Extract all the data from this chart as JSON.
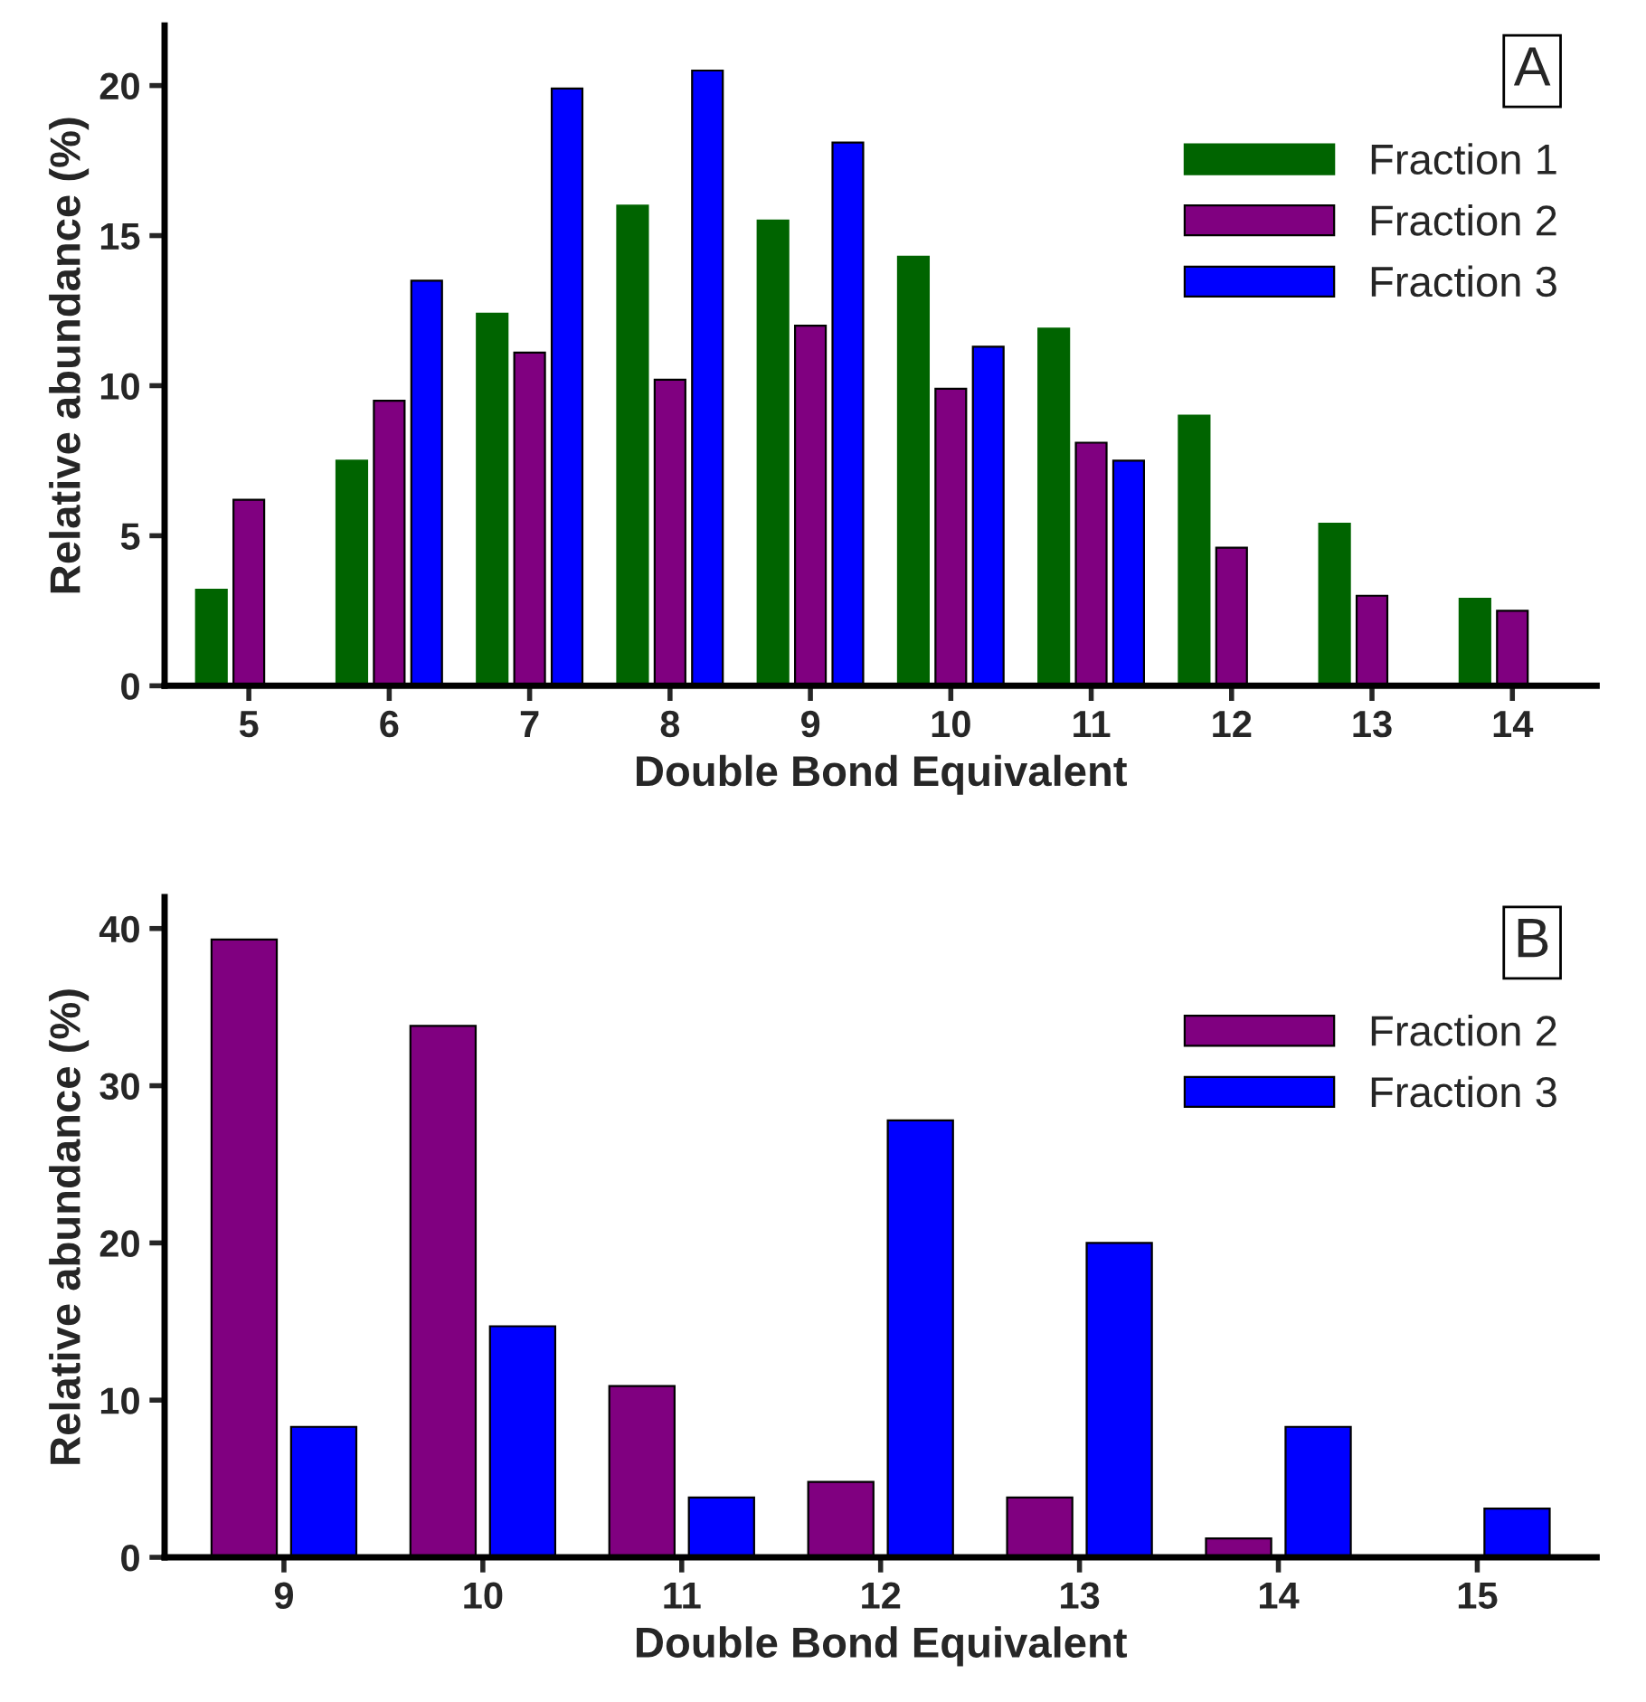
{
  "chart_data": [
    {
      "type": "bar",
      "categories": [
        "5",
        "6",
        "7",
        "8",
        "9",
        "10",
        "11",
        "12",
        "13",
        "14"
      ],
      "xlabel": "Double Bond Equivalent",
      "ylabel": "Relative abundance (%)",
      "ylim": [
        0,
        22
      ],
      "yticks": [
        0,
        5,
        10,
        15,
        20
      ],
      "grid": false,
      "legend": "top right",
      "annotations": [
        "A"
      ],
      "series": [
        {
          "name": "Fraction 1",
          "color": "#006400",
          "values": [
            3.2,
            7.5,
            12.4,
            16.0,
            15.5,
            14.3,
            11.9,
            9.0,
            5.4,
            2.9
          ]
        },
        {
          "name": "Fraction 2",
          "color": "#800080",
          "values": [
            6.2,
            9.5,
            11.1,
            10.2,
            12.0,
            9.9,
            8.1,
            4.6,
            3.0,
            2.5
          ]
        },
        {
          "name": "Fraction 3",
          "color": "#0000ff",
          "values": [
            null,
            13.5,
            19.9,
            20.5,
            18.1,
            11.3,
            7.5,
            null,
            null,
            null
          ]
        }
      ]
    },
    {
      "type": "bar",
      "categories": [
        "9",
        "10",
        "11",
        "12",
        "13",
        "14",
        "15"
      ],
      "xlabel": "Double Bond Equivalent",
      "ylabel": "Relative abundance (%)",
      "ylim": [
        0,
        42
      ],
      "yticks": [
        0,
        10,
        20,
        30,
        40
      ],
      "grid": false,
      "legend": "top right",
      "annotations": [
        "B"
      ],
      "series": [
        {
          "name": "Fraction 2",
          "color": "#800080",
          "values": [
            39.3,
            33.8,
            10.9,
            4.8,
            3.8,
            1.2,
            null
          ]
        },
        {
          "name": "Fraction 3",
          "color": "#0000ff",
          "values": [
            8.3,
            14.7,
            3.8,
            27.8,
            20.0,
            8.3,
            3.1
          ]
        }
      ]
    }
  ]
}
